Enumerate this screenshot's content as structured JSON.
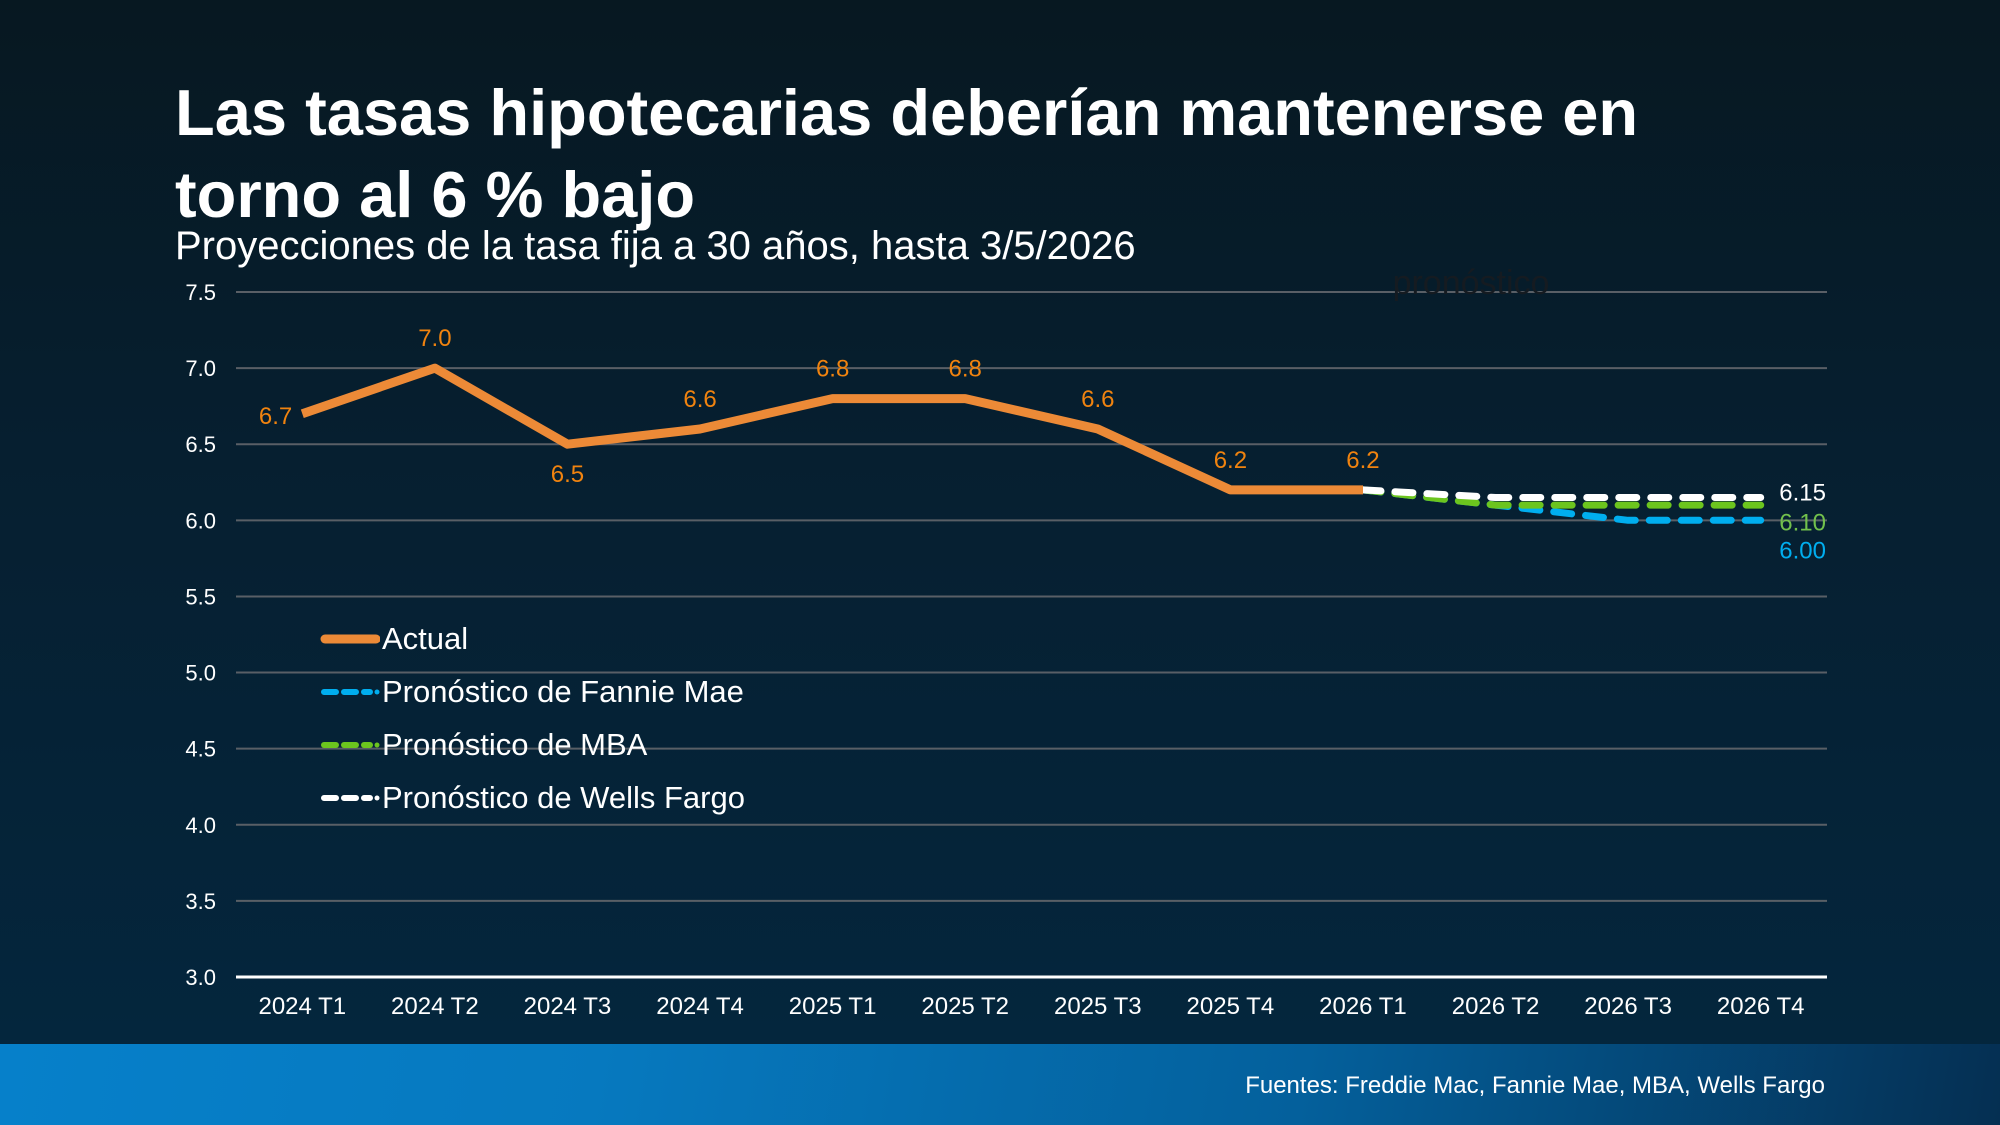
{
  "title": "Las tasas hipotecarias deberían mantenerse en torno al 6 % bajo",
  "subtitle": "Proyecciones de la tasa fija a 30 años, hasta 3/5/2026",
  "footer": {
    "sources": "Fuentes: Freddie Mac, Fannie Mae, MBA, Wells Fargo"
  },
  "colors": {
    "actual": "#ec8a37",
    "actual_label": "#f0830f",
    "fannie": "#00aeef",
    "mba": "#6cc51e",
    "mba_label": "#72c04c",
    "wells": "#ffffff",
    "grid": "#595f66",
    "forecast_annotation": "#151b21"
  },
  "chart_data": {
    "type": "line",
    "title": "Las tasas hipotecarias deberían mantenerse en torno al 6 % bajo",
    "subtitle": "Proyecciones de la tasa fija a 30 años, hasta 3/5/2026",
    "xlabel": "",
    "ylabel": "",
    "categories": [
      "2024 T1",
      "2024 T2",
      "2024 T3",
      "2024 T4",
      "2025 T1",
      "2025 T2",
      "2025 T3",
      "2025 T4",
      "2026 T1",
      "2026 T2",
      "2026 T3",
      "2026 T4"
    ],
    "ylim": [
      3.0,
      7.5
    ],
    "yticks": [
      "3.0",
      "3.5",
      "4.0",
      "4.5",
      "5.0",
      "5.5",
      "6.0",
      "6.5",
      "7.0",
      "7.5"
    ],
    "grid": true,
    "legend_position": "center-left",
    "annotation": "pronóstico",
    "series": [
      {
        "key": "actual",
        "name": "Actual",
        "style": "solid",
        "values": [
          6.7,
          7.0,
          6.5,
          6.6,
          6.8,
          6.8,
          6.6,
          6.2,
          6.2,
          null,
          null,
          null
        ],
        "labels": [
          "6.7",
          "7.0",
          "6.5",
          "6.6",
          "6.8",
          "6.8",
          "6.6",
          "6.2",
          "6.2",
          null,
          null,
          null
        ]
      },
      {
        "key": "fannie",
        "name": "Pronóstico de Fannie Mae",
        "style": "dashed",
        "values": [
          null,
          null,
          null,
          null,
          null,
          null,
          null,
          null,
          6.2,
          6.1,
          6.0,
          6.0
        ],
        "end_label": "6.00"
      },
      {
        "key": "mba",
        "name": "Pronóstico de MBA",
        "style": "dashed",
        "values": [
          null,
          null,
          null,
          null,
          null,
          null,
          null,
          null,
          6.2,
          6.1,
          6.1,
          6.1
        ],
        "end_label": "6.10"
      },
      {
        "key": "wells",
        "name": "Pronóstico de Wells Fargo",
        "style": "dashed",
        "values": [
          null,
          null,
          null,
          null,
          null,
          null,
          null,
          null,
          6.2,
          6.15,
          6.15,
          6.15
        ],
        "end_label": "6.15"
      }
    ]
  }
}
